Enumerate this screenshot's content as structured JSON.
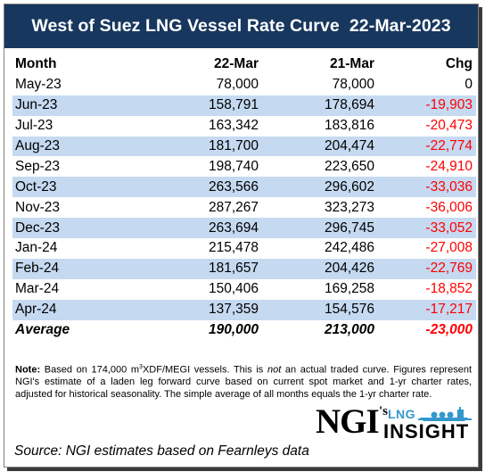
{
  "title": "West of Suez LNG Vessel Rate Curve  22-Mar-2023",
  "columns": {
    "month": "Month",
    "current": "22-Mar",
    "previous": "21-Mar",
    "change": "Chg"
  },
  "rows": [
    {
      "month": "May-23",
      "current": "78,000",
      "previous": "78,000",
      "change": "0",
      "negative": false
    },
    {
      "month": "Jun-23",
      "current": "158,791",
      "previous": "178,694",
      "change": "-19,903",
      "negative": true
    },
    {
      "month": "Jul-23",
      "current": "163,342",
      "previous": "183,816",
      "change": "-20,473",
      "negative": true
    },
    {
      "month": "Aug-23",
      "current": "181,700",
      "previous": "204,474",
      "change": "-22,774",
      "negative": true
    },
    {
      "month": "Sep-23",
      "current": "198,740",
      "previous": "223,650",
      "change": "-24,910",
      "negative": true
    },
    {
      "month": "Oct-23",
      "current": "263,566",
      "previous": "296,602",
      "change": "-33,036",
      "negative": true
    },
    {
      "month": "Nov-23",
      "current": "287,267",
      "previous": "323,273",
      "change": "-36,006",
      "negative": true
    },
    {
      "month": "Dec-23",
      "current": "263,694",
      "previous": "296,745",
      "change": "-33,052",
      "negative": true
    },
    {
      "month": "Jan-24",
      "current": "215,478",
      "previous": "242,486",
      "change": "-27,008",
      "negative": true
    },
    {
      "month": "Feb-24",
      "current": "181,657",
      "previous": "204,426",
      "change": "-22,769",
      "negative": true
    },
    {
      "month": "Mar-24",
      "current": "150,406",
      "previous": "169,258",
      "change": "-18,852",
      "negative": true
    },
    {
      "month": "Apr-24",
      "current": "137,359",
      "previous": "154,576",
      "change": "-17,217",
      "negative": true
    }
  ],
  "average": {
    "label": "Average",
    "current": "190,000",
    "previous": "213,000",
    "change": "-23,000"
  },
  "note": {
    "label": "Note:",
    "text_1": " Based on 174,000 m",
    "superscript": "3",
    "text_2": "XDF/MEGI vessels. This is ",
    "emphasis": "not",
    "text_3": " an actual traded curve. Figures represent NGI's estimate of a laden leg forward curve based on current spot market and 1-yr charter rates, adjusted for historical seasonality. The simple average of all months equals the 1-yr charter rate."
  },
  "logo": {
    "ngi": "NGI",
    "apostrophe": "'s",
    "lng": "LNG",
    "insight": "INSIGHT"
  },
  "source": "Source: NGI estimates based on Fearnleys data",
  "colors": {
    "title_background": "#17375e",
    "row_shading": "#c5d9f1",
    "negative": "#ff0000",
    "logo_accent": "#3399cc"
  }
}
